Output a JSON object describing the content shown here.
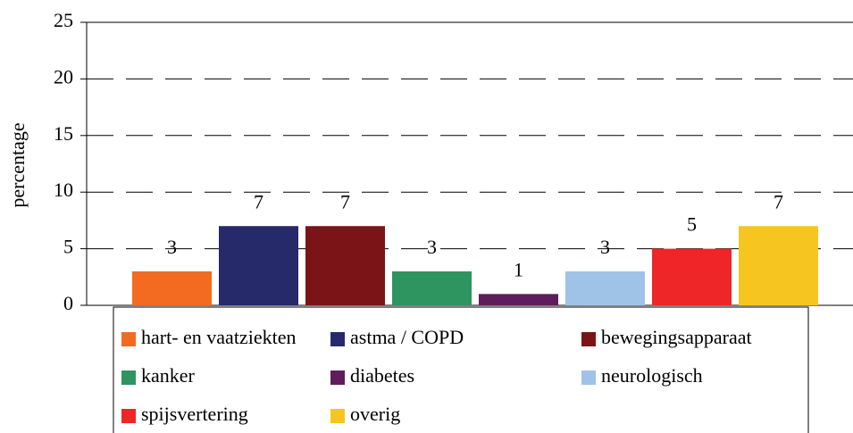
{
  "chart_data": {
    "type": "bar",
    "y_label": "percentage",
    "categories": [
      null
    ],
    "series": [
      {
        "name": "hart- en vaatziekten",
        "color": "#f26b21",
        "values": [
          3
        ]
      },
      {
        "name": "astma / COPD",
        "color": "#262a6b",
        "values": [
          7
        ]
      },
      {
        "name": "bewegingsapparaat",
        "color": "#7b1416",
        "values": [
          7
        ]
      },
      {
        "name": "kanker",
        "color": "#2e9460",
        "values": [
          3
        ]
      },
      {
        "name": "diabetes",
        "color": "#5e1e5c",
        "values": [
          1
        ]
      },
      {
        "name": "neurologisch",
        "color": "#9fc3e7",
        "values": [
          3
        ]
      },
      {
        "name": "spijsvertering",
        "color": "#ee2627",
        "values": [
          5
        ]
      },
      {
        "name": "overig",
        "color": "#f6c51f",
        "values": [
          7
        ]
      }
    ],
    "ylim": [
      0,
      25
    ],
    "yticks": [
      0,
      5,
      10,
      15,
      20,
      25
    ],
    "grid": true,
    "legend": "bottom"
  }
}
